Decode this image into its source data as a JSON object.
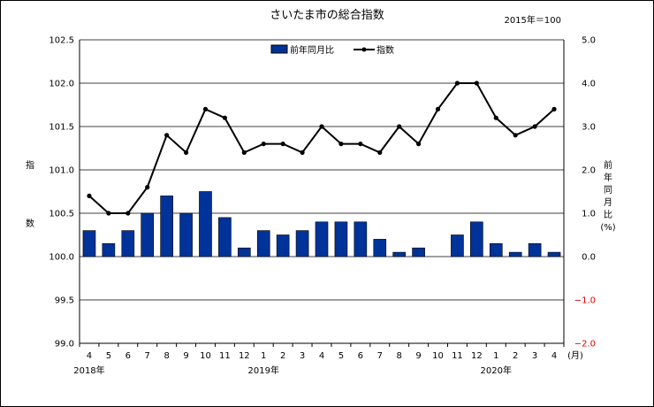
{
  "chart_data": {
    "type": "bar+line",
    "title": "さいたま市の総合指数",
    "base_note": "2015年＝100",
    "left_axis": {
      "label": [
        "指",
        "数"
      ],
      "ylim": [
        99.0,
        102.5
      ],
      "ticks": [
        "102.5",
        "102.0",
        "101.5",
        "101.0",
        "100.5",
        "100.0",
        "99.5",
        "99.0"
      ]
    },
    "right_axis": {
      "label": [
        "前",
        "年",
        "同",
        "月",
        "比",
        "(%)"
      ],
      "ylim": [
        -2.0,
        5.0
      ],
      "ticks": [
        "5.0",
        "4.0",
        "3.0",
        "2.0",
        "1.0",
        "0.0",
        "−1.0",
        "−2.0"
      ]
    },
    "categories": [
      "4",
      "5",
      "6",
      "7",
      "8",
      "9",
      "10",
      "11",
      "12",
      "1",
      "2",
      "3",
      "4",
      "5",
      "6",
      "7",
      "8",
      "9",
      "10",
      "11",
      "12",
      "1",
      "2",
      "3",
      "4"
    ],
    "unit_label": "(月)",
    "year_labels": [
      {
        "text": "2018年",
        "index": 0
      },
      {
        "text": "2019年",
        "index": 9
      },
      {
        "text": "2020年",
        "index": 21
      }
    ],
    "series": [
      {
        "name": "前年同月比",
        "type": "bar",
        "axis": "right",
        "color": "#003399",
        "values": [
          0.6,
          0.3,
          0.6,
          1.0,
          1.4,
          1.0,
          1.5,
          0.9,
          0.2,
          0.6,
          0.5,
          0.6,
          0.8,
          0.8,
          0.8,
          0.4,
          0.1,
          0.2,
          0.0,
          0.5,
          0.8,
          0.3,
          0.1,
          0.3,
          0.1
        ]
      },
      {
        "name": "指数",
        "type": "line",
        "axis": "left",
        "color": "#000000",
        "values": [
          100.7,
          100.5,
          100.5,
          100.8,
          101.4,
          101.2,
          101.7,
          101.6,
          101.2,
          101.3,
          101.3,
          101.2,
          101.5,
          101.3,
          101.3,
          101.2,
          101.5,
          101.3,
          101.7,
          102.0,
          102.0,
          101.6,
          101.4,
          101.5,
          101.7
        ]
      }
    ],
    "legend_position": "top-center",
    "negative_tick_color": "#e00000"
  }
}
